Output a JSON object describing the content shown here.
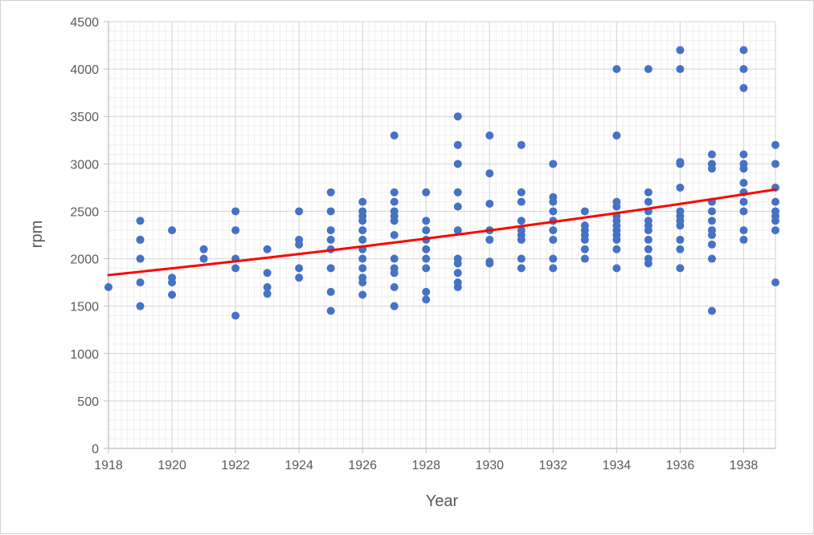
{
  "chart_data": {
    "type": "scatter",
    "title": "",
    "xlabel": "Year",
    "ylabel": "rpm",
    "xlim": [
      1918,
      1939
    ],
    "ylim": [
      0,
      4500
    ],
    "x_ticks": [
      "1918",
      "1920",
      "1922",
      "1924",
      "1926",
      "1928",
      "1930",
      "1932",
      "1934",
      "1936",
      "1938"
    ],
    "y_ticks": [
      "0",
      "500",
      "1000",
      "1500",
      "2000",
      "2500",
      "3000",
      "3500",
      "4000",
      "4500"
    ],
    "x_tick_values": [
      1918,
      1920,
      1922,
      1924,
      1926,
      1928,
      1930,
      1932,
      1934,
      1936,
      1938
    ],
    "y_tick_values": [
      0,
      500,
      1000,
      1500,
      2000,
      2500,
      3000,
      3500,
      4000,
      4500
    ],
    "grid": true,
    "legend": "none",
    "colors": {
      "points": "#4472C4",
      "trendline": "#FF0000",
      "grid_major": "#d9d9d9",
      "grid_minor": "#efefef",
      "axis": "#bfbfbf"
    },
    "series": [
      {
        "marker": "circle",
        "points": [
          [
            1918,
            1700
          ],
          [
            1919,
            2400
          ],
          [
            1919,
            2200
          ],
          [
            1919,
            2200
          ],
          [
            1919,
            2000
          ],
          [
            1919,
            1750
          ],
          [
            1919,
            1500
          ],
          [
            1920,
            2300
          ],
          [
            1920,
            1800
          ],
          [
            1920,
            1750
          ],
          [
            1920,
            1620
          ],
          [
            1921,
            2100
          ],
          [
            1921,
            2000
          ],
          [
            1922,
            2500
          ],
          [
            1922,
            2300
          ],
          [
            1922,
            2000
          ],
          [
            1922,
            1900
          ],
          [
            1922,
            1400
          ],
          [
            1923,
            2100
          ],
          [
            1923,
            1850
          ],
          [
            1923,
            1700
          ],
          [
            1923,
            1630
          ],
          [
            1924,
            2500
          ],
          [
            1924,
            2200
          ],
          [
            1924,
            2150
          ],
          [
            1924,
            1900
          ],
          [
            1924,
            1800
          ],
          [
            1925,
            2700
          ],
          [
            1925,
            2500
          ],
          [
            1925,
            2300
          ],
          [
            1925,
            2200
          ],
          [
            1925,
            2100
          ],
          [
            1925,
            1900
          ],
          [
            1925,
            1650
          ],
          [
            1925,
            1450
          ],
          [
            1926,
            2600
          ],
          [
            1926,
            2500
          ],
          [
            1926,
            2450
          ],
          [
            1926,
            2400
          ],
          [
            1926,
            2300
          ],
          [
            1926,
            2200
          ],
          [
            1926,
            2100
          ],
          [
            1926,
            2000
          ],
          [
            1926,
            1900
          ],
          [
            1926,
            1800
          ],
          [
            1926,
            1750
          ],
          [
            1926,
            1620
          ],
          [
            1927,
            3300
          ],
          [
            1927,
            2700
          ],
          [
            1927,
            2600
          ],
          [
            1927,
            2500
          ],
          [
            1927,
            2450
          ],
          [
            1927,
            2400
          ],
          [
            1927,
            2250
          ],
          [
            1927,
            2000
          ],
          [
            1927,
            1900
          ],
          [
            1927,
            1850
          ],
          [
            1927,
            1700
          ],
          [
            1927,
            1500
          ],
          [
            1928,
            2700
          ],
          [
            1928,
            2400
          ],
          [
            1928,
            2300
          ],
          [
            1928,
            2200
          ],
          [
            1928,
            2100
          ],
          [
            1928,
            2000
          ],
          [
            1928,
            1900
          ],
          [
            1928,
            1650
          ],
          [
            1928,
            1570
          ],
          [
            1929,
            3500
          ],
          [
            1929,
            3200
          ],
          [
            1929,
            3000
          ],
          [
            1929,
            2700
          ],
          [
            1929,
            2550
          ],
          [
            1929,
            2300
          ],
          [
            1929,
            2000
          ],
          [
            1929,
            1950
          ],
          [
            1929,
            1850
          ],
          [
            1929,
            1750
          ],
          [
            1929,
            1700
          ],
          [
            1930,
            3300
          ],
          [
            1930,
            2900
          ],
          [
            1930,
            2580
          ],
          [
            1930,
            2300
          ],
          [
            1930,
            2200
          ],
          [
            1930,
            1970
          ],
          [
            1930,
            1950
          ],
          [
            1931,
            3200
          ],
          [
            1931,
            2700
          ],
          [
            1931,
            2600
          ],
          [
            1931,
            2400
          ],
          [
            1931,
            2300
          ],
          [
            1931,
            2250
          ],
          [
            1931,
            2200
          ],
          [
            1931,
            2000
          ],
          [
            1931,
            1900
          ],
          [
            1932,
            3000
          ],
          [
            1932,
            2650
          ],
          [
            1932,
            2600
          ],
          [
            1932,
            2500
          ],
          [
            1932,
            2400
          ],
          [
            1932,
            2300
          ],
          [
            1932,
            2200
          ],
          [
            1932,
            2000
          ],
          [
            1932,
            1900
          ],
          [
            1933,
            2500
          ],
          [
            1933,
            2350
          ],
          [
            1933,
            2300
          ],
          [
            1933,
            2250
          ],
          [
            1933,
            2200
          ],
          [
            1933,
            2100
          ],
          [
            1933,
            2000
          ],
          [
            1934,
            4000
          ],
          [
            1934,
            3300
          ],
          [
            1934,
            2600
          ],
          [
            1934,
            2550
          ],
          [
            1934,
            2450
          ],
          [
            1934,
            2400
          ],
          [
            1934,
            2350
          ],
          [
            1934,
            2300
          ],
          [
            1934,
            2250
          ],
          [
            1934,
            2200
          ],
          [
            1934,
            2100
          ],
          [
            1934,
            1900
          ],
          [
            1935,
            4000
          ],
          [
            1935,
            2700
          ],
          [
            1935,
            2600
          ],
          [
            1935,
            2500
          ],
          [
            1935,
            2400
          ],
          [
            1935,
            2350
          ],
          [
            1935,
            2300
          ],
          [
            1935,
            2200
          ],
          [
            1935,
            2100
          ],
          [
            1935,
            2000
          ],
          [
            1935,
            1950
          ],
          [
            1936,
            4200
          ],
          [
            1936,
            4000
          ],
          [
            1936,
            3020
          ],
          [
            1936,
            3000
          ],
          [
            1936,
            2750
          ],
          [
            1936,
            2500
          ],
          [
            1936,
            2450
          ],
          [
            1936,
            2400
          ],
          [
            1936,
            2350
          ],
          [
            1936,
            2200
          ],
          [
            1936,
            2100
          ],
          [
            1936,
            1900
          ],
          [
            1937,
            3100
          ],
          [
            1937,
            3000
          ],
          [
            1937,
            2950
          ],
          [
            1937,
            2600
          ],
          [
            1937,
            2500
          ],
          [
            1937,
            2400
          ],
          [
            1937,
            2300
          ],
          [
            1937,
            2250
          ],
          [
            1937,
            2150
          ],
          [
            1937,
            2000
          ],
          [
            1937,
            1450
          ],
          [
            1938,
            4200
          ],
          [
            1938,
            4000
          ],
          [
            1938,
            3800
          ],
          [
            1938,
            3100
          ],
          [
            1938,
            3000
          ],
          [
            1938,
            2950
          ],
          [
            1938,
            2800
          ],
          [
            1938,
            2700
          ],
          [
            1938,
            2600
          ],
          [
            1938,
            2500
          ],
          [
            1938,
            2300
          ],
          [
            1938,
            2200
          ],
          [
            1939,
            3200
          ],
          [
            1939,
            3000
          ],
          [
            1939,
            2750
          ],
          [
            1939,
            2600
          ],
          [
            1939,
            2500
          ],
          [
            1939,
            2450
          ],
          [
            1939,
            2400
          ],
          [
            1939,
            2300
          ],
          [
            1939,
            1750
          ]
        ]
      }
    ],
    "trendline": {
      "type": "exponential",
      "points": [
        [
          1918,
          1840
        ],
        [
          1924,
          2060
        ],
        [
          1930,
          2270
        ],
        [
          1934,
          2430
        ],
        [
          1939,
          2790
        ]
      ]
    }
  }
}
